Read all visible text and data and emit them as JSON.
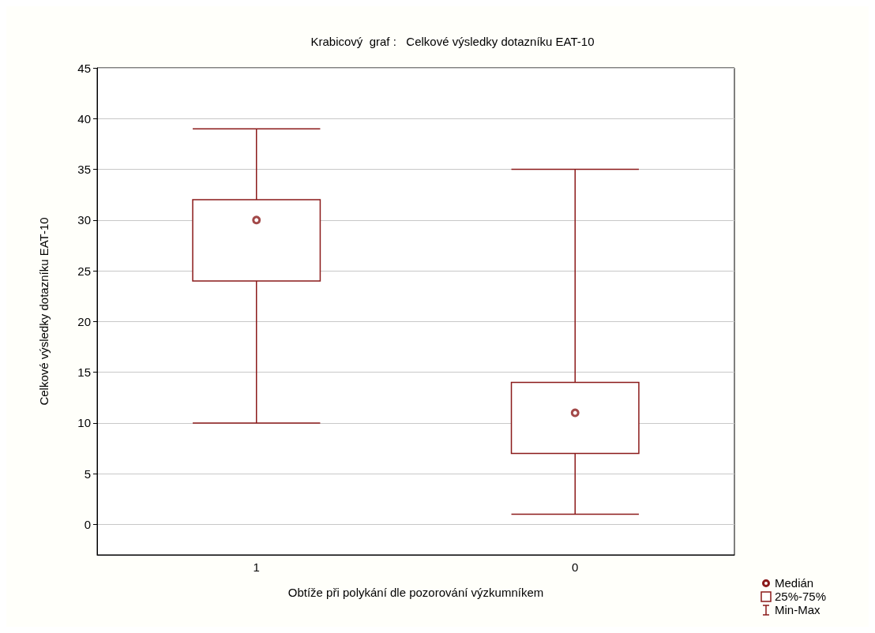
{
  "chart_data": {
    "type": "box",
    "title": "Krabicový  graf :   Celkové výsledky dotazníku EAT-10",
    "xlabel": "Obtíže při polykání dle pozorování výzkumníkem",
    "ylabel": "Celkové výsledky dotazníku EAT-10",
    "categories": [
      "1",
      "0"
    ],
    "series": [
      {
        "name": "Medián",
        "type": "scatter",
        "color": "#8b1a1a",
        "x": [
          "1",
          "0"
        ],
        "values": [
          30,
          11
        ],
        "marker": "circle"
      },
      {
        "name": "25%-75%",
        "type": "box",
        "color": "#8b1a1a",
        "boxes": [
          {
            "low": 10,
            "q1": 24,
            "q3": 32,
            "high": 39
          },
          {
            "low": 1,
            "q1": 7,
            "q3": 14,
            "high": 35
          }
        ]
      }
    ],
    "ylim": [
      -3,
      45
    ],
    "yticks": [
      0,
      5,
      10,
      15,
      20,
      25,
      30,
      35,
      40,
      45
    ],
    "grid": "y",
    "legend": "bottom right",
    "annotations": [
      "Min-Max"
    ]
  }
}
